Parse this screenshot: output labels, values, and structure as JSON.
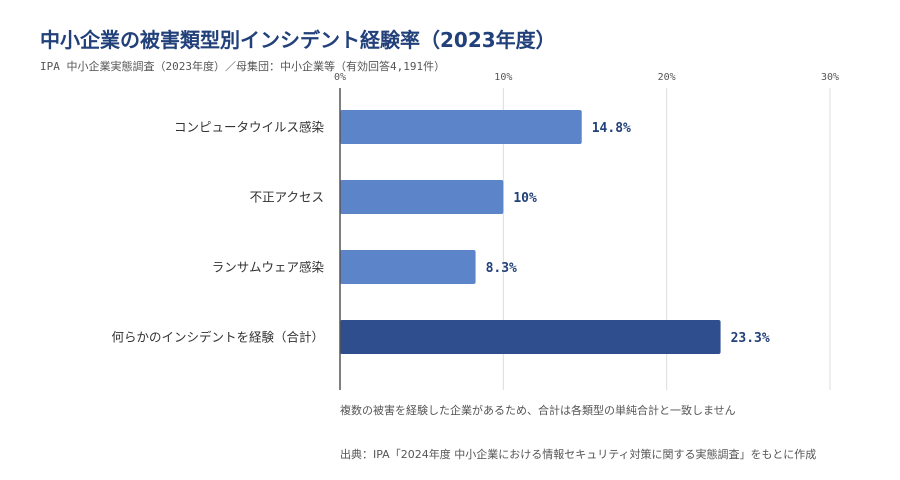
{
  "chart_data": {
    "type": "bar",
    "orientation": "horizontal",
    "title": "中小企業の被害類型別インシデント経験率（2023年度）",
    "subtitle": "IPA 中小企業実態調査（2023年度）／母集団：中小企業等（有効回答4,191件）",
    "categories": [
      "コンピュータウイルス感染",
      "不正アクセス",
      "ランサムウェア感染",
      "何らかのインシデントを経験（合計）"
    ],
    "values": [
      14.8,
      10,
      8.3,
      23.3
    ],
    "value_labels": [
      "14.8%",
      "10%",
      "8.3%",
      "23.3%"
    ],
    "xlim": [
      0,
      30
    ],
    "xticks": [
      0,
      10,
      20,
      30
    ],
    "xtick_labels": [
      "0%",
      "10%",
      "20%",
      "30%"
    ],
    "grid": true,
    "legend": "none",
    "note": "複数の被害を経験した企業があるため、合計は各類型の単純合計と一致しません",
    "source": "出典：IPA「2024年度 中小企業における情報セキュリティ対策に関する実態調査」をもとに作成",
    "colors": {
      "bar": "#5b84c9",
      "bar_total": "#2e4e8e",
      "title": "#22407a",
      "grid": "#dddddd",
      "axis": "#555555"
    }
  }
}
